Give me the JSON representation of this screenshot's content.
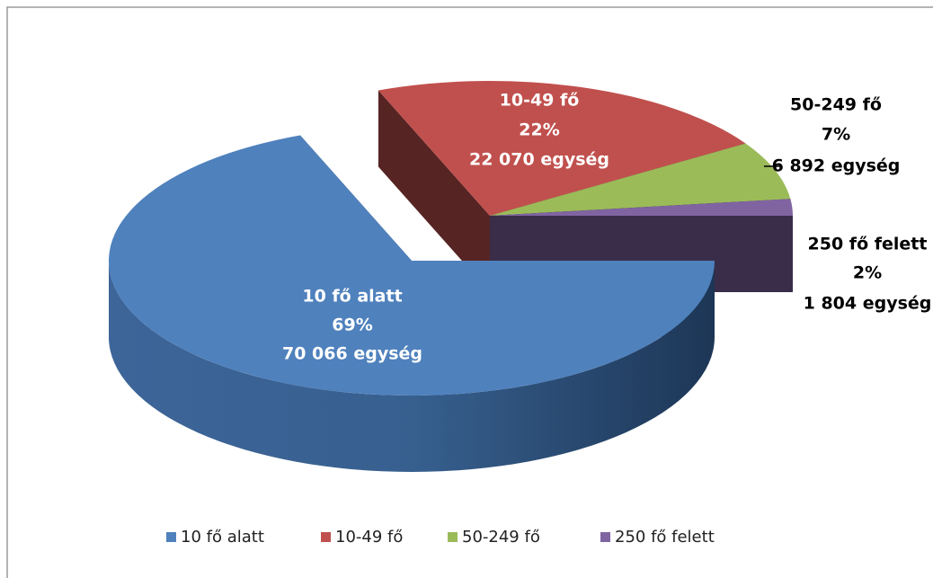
{
  "chart_data": {
    "type": "pie3d",
    "categories": [
      "10 fő alatt",
      "10-49 fő",
      "50-249 fő",
      "250 fő felett"
    ],
    "values": [
      69,
      22,
      7,
      2
    ],
    "value_labels": [
      "69%",
      "22%",
      "7%",
      "2%"
    ],
    "counts": [
      70066,
      22070,
      6892,
      1804
    ],
    "count_labels": [
      "70 066 egység",
      "22 070 egység",
      "6 892 egység",
      "1 804 egység"
    ],
    "colors": [
      "#4f81bd",
      "#c0504d",
      "#9bbb59",
      "#8064a2"
    ],
    "legend": "bottom"
  }
}
